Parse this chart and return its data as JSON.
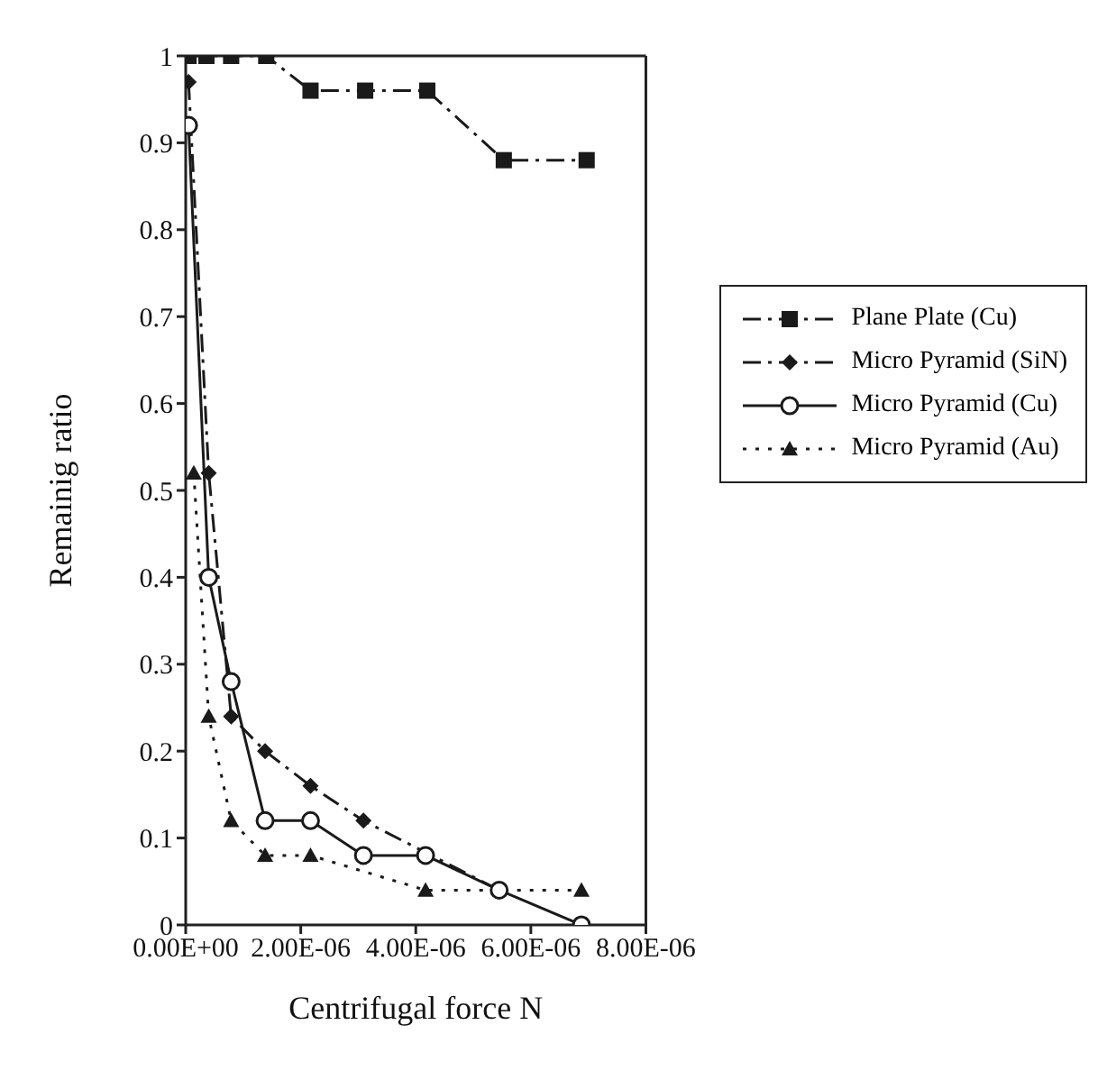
{
  "chart_data": {
    "type": "line",
    "xlabel": "Centrifugal force  N",
    "ylabel": "Remainig ratio",
    "xlim": [
      0,
      8e-06
    ],
    "xticks": [
      {
        "value": 0,
        "label": "0.00E+00"
      },
      {
        "value": 2e-06,
        "label": "2.00E-06"
      },
      {
        "value": 4e-06,
        "label": "4.00E-06"
      },
      {
        "value": 6e-06,
        "label": "6.00E-06"
      },
      {
        "value": 8e-06,
        "label": "8.00E-06"
      }
    ],
    "ylim": [
      0,
      1
    ],
    "yticks": [
      0,
      0.1,
      0.2,
      0.3,
      0.4,
      0.5,
      0.6,
      0.7,
      0.8,
      0.9,
      1
    ],
    "grid": false,
    "legend": "top right",
    "series": [
      {
        "name": "Plane Plate (Cu)",
        "color": "#1a1a1a",
        "marker": "square",
        "line_style": "dashed",
        "x": [
          5e-08,
          3.6e-07,
          7.9e-07,
          1.4e-06,
          2.17e-06,
          3.12e-06,
          4.2e-06,
          5.53e-06,
          6.97e-06
        ],
        "values": [
          1,
          1,
          1,
          1,
          0.96,
          0.96,
          0.96,
          0.88,
          0.88
        ]
      },
      {
        "name": "Micro Pyramid (SiN)",
        "color": "#1a1a1a",
        "marker": "diamond",
        "line_style": "dashed",
        "x": [
          5e-08,
          4e-07,
          7.9e-07,
          1.38e-06,
          2.17e-06,
          3.09e-06,
          5.45e-06
        ],
        "values": [
          0.97,
          0.52,
          0.24,
          0.2,
          0.16,
          0.12,
          0.04
        ]
      },
      {
        "name": "Micro Pyramid (Cu)",
        "color": "#1a1a1a",
        "marker": "circle",
        "line_style": "solid",
        "x": [
          5e-08,
          4e-07,
          7.9e-07,
          1.38e-06,
          2.17e-06,
          3.09e-06,
          4.17e-06,
          5.45e-06,
          6.88e-06
        ],
        "values": [
          0.92,
          0.4,
          0.28,
          0.12,
          0.12,
          0.08,
          0.08,
          0.04,
          0
        ]
      },
      {
        "name": "Micro Pyramid (Au)",
        "color": "#1a1a1a",
        "marker": "triangle",
        "line_style": "dotted",
        "x": [
          1.4e-07,
          4e-07,
          7.9e-07,
          1.38e-06,
          2.17e-06,
          4.17e-06,
          6.88e-06
        ],
        "values": [
          0.52,
          0.24,
          0.12,
          0.08,
          0.08,
          0.04,
          0.04
        ]
      }
    ]
  }
}
